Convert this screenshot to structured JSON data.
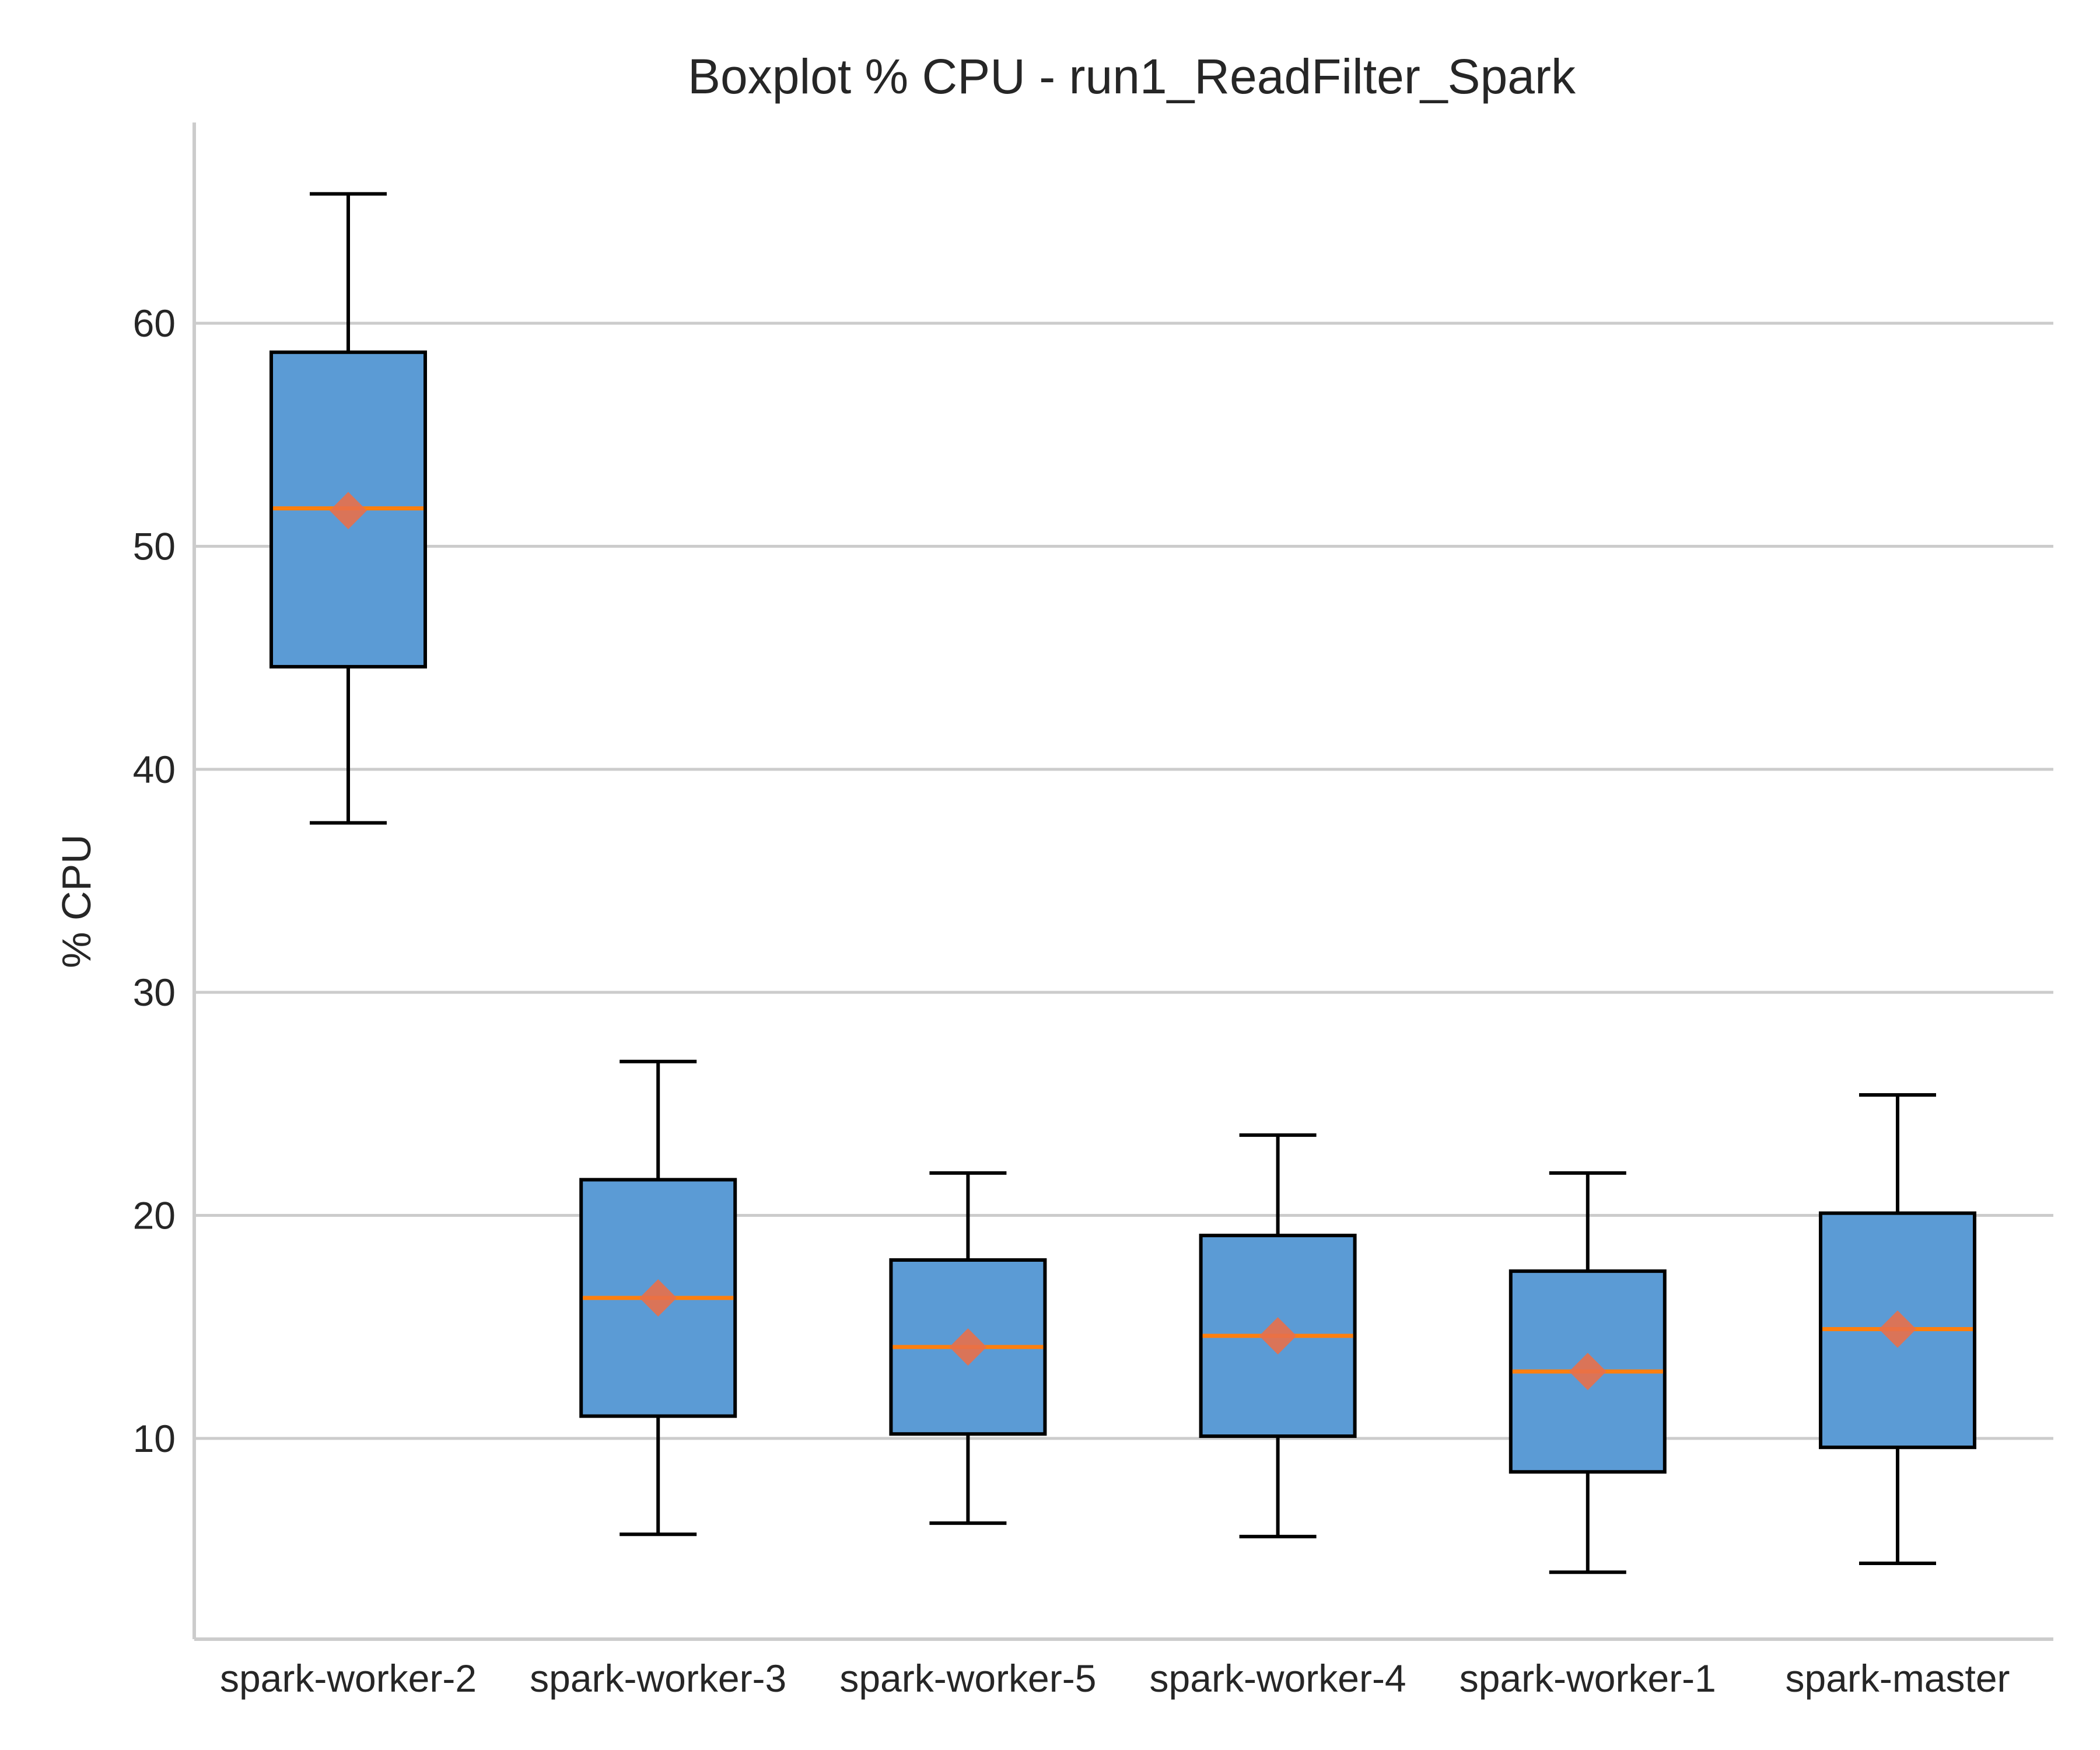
{
  "chart_data": {
    "type": "boxplot",
    "title": "Boxplot % CPU - run1_ReadFilter_Spark",
    "xlabel": "",
    "ylabel": "% CPU",
    "ylim": [
      1,
      69
    ],
    "yticks": [
      10,
      20,
      30,
      40,
      50,
      60
    ],
    "grid": "horizontal",
    "categories": [
      "spark-worker-2",
      "spark-worker-3",
      "spark-worker-5",
      "spark-worker-4",
      "spark-worker-1",
      "spark-master"
    ],
    "boxes": [
      {
        "name": "spark-worker-2",
        "whisker_low": 37.6,
        "q1": 44.6,
        "median": 51.7,
        "mean": 51.6,
        "q3": 58.7,
        "whisker_high": 65.8
      },
      {
        "name": "spark-worker-3",
        "whisker_low": 5.7,
        "q1": 11.0,
        "median": 16.3,
        "mean": 16.3,
        "q3": 21.6,
        "whisker_high": 26.9
      },
      {
        "name": "spark-worker-5",
        "whisker_low": 6.2,
        "q1": 10.2,
        "median": 14.1,
        "mean": 14.1,
        "q3": 18.0,
        "whisker_high": 21.9
      },
      {
        "name": "spark-worker-4",
        "whisker_low": 5.6,
        "q1": 10.1,
        "median": 14.6,
        "mean": 14.6,
        "q3": 19.1,
        "whisker_high": 23.6
      },
      {
        "name": "spark-worker-1",
        "whisker_low": 4.0,
        "q1": 8.5,
        "median": 13.0,
        "mean": 13.0,
        "q3": 17.5,
        "whisker_high": 21.9
      },
      {
        "name": "spark-master",
        "whisker_low": 4.4,
        "q1": 9.6,
        "median": 14.9,
        "mean": 14.9,
        "q3": 20.1,
        "whisker_high": 25.4
      }
    ],
    "colors": {
      "box_fill": "#5b9bd5",
      "box_edge": "#000000",
      "median": "#ff7f0e",
      "mean_marker": "#e8704a",
      "grid": "#cccccc",
      "axis": "#cccccc"
    }
  }
}
